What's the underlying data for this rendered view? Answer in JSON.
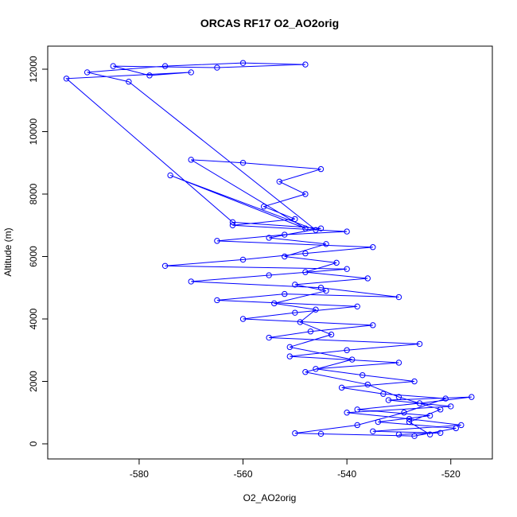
{
  "chart_data": {
    "type": "line",
    "title": "ORCAS RF17 O2_AO2orig",
    "x_label": "O2_AO2orig",
    "y_label": "Altitude (m)",
    "xlim": [
      -597.6,
      -512.0
    ],
    "ylim": [
      -484,
      12739
    ],
    "xticks": [
      -580,
      -560,
      -540,
      -520
    ],
    "yticks": [
      0,
      2000,
      4000,
      6000,
      8000,
      10000,
      12000
    ],
    "markers": true,
    "grid": false,
    "series": [
      {
        "name": "Altitude (m)",
        "color": "#0000ff",
        "x": [
          -530,
          -522,
          -535,
          -518,
          -528,
          -540,
          -520,
          -532,
          -516,
          -526,
          -538,
          -524,
          -534,
          -519,
          -527,
          -545,
          -550,
          -538,
          -529,
          -521,
          -533,
          -541,
          -527,
          -537,
          -546,
          -530,
          -551,
          -540,
          -526,
          -555,
          -547,
          -535,
          -560,
          -550,
          -538,
          -565,
          -552,
          -530,
          -545,
          -570,
          -555,
          -540,
          -575,
          -560,
          -548,
          -535,
          -565,
          -552,
          -540,
          -562,
          -550,
          -556,
          -548,
          -553,
          -545,
          -560,
          -570,
          -548,
          -574,
          -546,
          -582,
          -590,
          -575,
          -560,
          -548,
          -565,
          -585,
          -578,
          -570,
          -594,
          -562,
          -545,
          -555,
          -544,
          -552,
          -542,
          -548,
          -536,
          -550,
          -544,
          -554,
          -546,
          -549,
          -543,
          -551,
          -539,
          -548,
          -536,
          -530,
          -522,
          -528,
          -524
        ],
        "values": [
          300,
          350,
          400,
          600,
          800,
          1000,
          1200,
          1400,
          1500,
          1300,
          1100,
          900,
          700,
          500,
          250,
          320,
          340,
          600,
          1000,
          1450,
          1600,
          1800,
          2000,
          2200,
          2400,
          2600,
          2800,
          3000,
          3200,
          3400,
          3600,
          3800,
          4000,
          4200,
          4400,
          4600,
          4800,
          4700,
          5000,
          5200,
          5400,
          5600,
          5700,
          5900,
          6100,
          6300,
          6500,
          6700,
          6800,
          7000,
          7200,
          7600,
          8000,
          8400,
          8800,
          9000,
          9100,
          6900,
          8600,
          6850,
          11600,
          11900,
          12100,
          12200,
          12150,
          12050,
          12100,
          11800,
          11900,
          11700,
          7100,
          6900,
          6600,
          6400,
          6000,
          5800,
          5500,
          5300,
          5100,
          4900,
          4500,
          4300,
          3900,
          3500,
          3100,
          2700,
          2300,
          1900,
          1500,
          1100,
          700,
          300
        ]
      }
    ]
  }
}
